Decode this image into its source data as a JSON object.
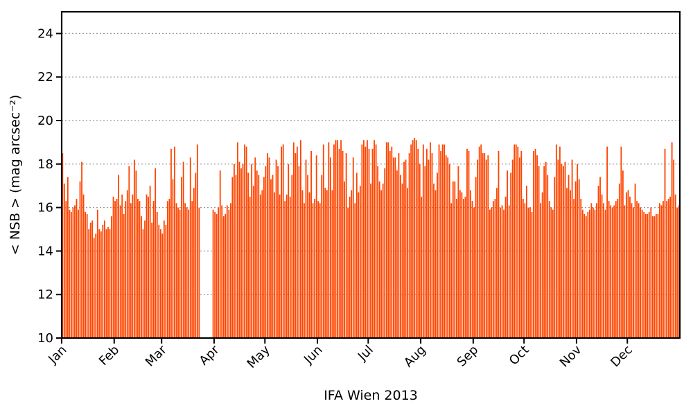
{
  "chart_data": {
    "type": "bar",
    "xlabel": "IFA Wien 2013",
    "ylabel": "< NSB >  (mag arcsec⁻²)",
    "ylim": [
      10,
      25
    ],
    "yticks": [
      10,
      12,
      14,
      16,
      18,
      20,
      22,
      24
    ],
    "grid": "horizontal dotted",
    "xlim_days": [
      1,
      365
    ],
    "month_labels": [
      "Jan",
      "Feb",
      "Mar",
      "Apr",
      "May",
      "Jun",
      "Jul",
      "Aug",
      "Sep",
      "Oct",
      "Nov",
      "Dec"
    ],
    "month_start_days": [
      1,
      32,
      60,
      91,
      121,
      152,
      182,
      213,
      244,
      274,
      305,
      335
    ],
    "bar_color": "#ff4500",
    "gap_days": [
      79,
      86
    ],
    "series": [
      {
        "values": [
          18.5,
          17.1,
          16.3,
          17.4,
          15.9,
          15.8,
          16.0,
          16.1,
          16.4,
          15.9,
          17.2,
          18.1,
          16.6,
          15.8,
          15.7,
          15.0,
          15.3,
          15.4,
          14.6,
          14.8,
          15.9,
          15.0,
          14.9,
          15.2,
          15.4,
          15.0,
          15.1,
          15.0,
          15.6,
          16.5,
          16.3,
          16.4,
          17.5,
          16.1,
          16.6,
          15.7,
          16.3,
          16.8,
          17.9,
          16.2,
          16.6,
          18.2,
          17.7,
          16.4,
          16.3,
          15.6,
          15.0,
          15.4,
          16.6,
          16.5,
          17.0,
          15.3,
          16.3,
          17.8,
          15.8,
          15.2,
          15.0,
          14.8,
          15.4,
          15.2,
          16.3,
          16.4,
          18.7,
          17.3,
          18.8,
          16.2,
          16.0,
          15.9,
          17.4,
          18.1,
          16.2,
          16.0,
          15.9,
          18.3,
          16.3,
          16.9,
          17.6,
          18.9,
          16.0,
          10,
          10,
          10,
          10,
          10,
          10,
          10,
          15.9,
          15.8,
          15.7,
          16.0,
          17.7,
          16.1,
          15.6,
          15.7,
          16.1,
          15.9,
          16.2,
          17.4,
          18.0,
          17.5,
          19.0,
          18.1,
          17.8,
          18.0,
          18.9,
          18.8,
          17.6,
          16.5,
          18.0,
          17.0,
          18.3,
          17.7,
          17.5,
          16.6,
          16.8,
          17.4,
          17.9,
          18.5,
          18.3,
          17.3,
          17.5,
          16.7,
          18.2,
          17.9,
          16.6,
          18.8,
          18.9,
          16.3,
          16.6,
          18.0,
          16.5,
          17.5,
          19.0,
          18.5,
          18.8,
          17.9,
          19.1,
          16.8,
          16.2,
          18.2,
          17.5,
          16.7,
          18.6,
          16.2,
          16.4,
          18.4,
          16.3,
          16.2,
          17.5,
          18.9,
          16.9,
          16.8,
          19.0,
          18.3,
          16.8,
          18.9,
          19.1,
          19.1,
          18.7,
          19.1,
          18.6,
          17.2,
          18.5,
          16.0,
          16.5,
          16.8,
          18.3,
          16.2,
          17.6,
          16.7,
          17.0,
          18.9,
          19.1,
          18.8,
          19.1,
          18.7,
          17.1,
          18.7,
          19.1,
          18.9,
          17.9,
          17.2,
          16.8,
          17.1,
          17.8,
          19.0,
          19.0,
          18.6,
          18.8,
          18.3,
          18.3,
          17.7,
          18.5,
          17.5,
          17.1,
          18.1,
          18.2,
          16.9,
          18.5,
          18.9,
          19.1,
          19.2,
          19.1,
          18.7,
          18.0,
          16.5,
          18.9,
          17.9,
          18.7,
          18.2,
          19.0,
          18.5,
          17.1,
          16.8,
          17.6,
          18.9,
          18.6,
          18.9,
          18.9,
          18.4,
          18.3,
          18.0,
          16.2,
          17.2,
          17.2,
          16.4,
          17.9,
          16.8,
          16.7,
          16.4,
          16.5,
          18.7,
          18.6,
          16.8,
          16.3,
          16.0,
          17.4,
          18.2,
          18.8,
          18.9,
          18.5,
          18.5,
          18.2,
          18.4,
          15.9,
          16.0,
          16.3,
          16.4,
          16.9,
          18.6,
          16.0,
          16.1,
          15.9,
          16.5,
          17.7,
          16.1,
          17.6,
          18.2,
          18.9,
          18.9,
          18.8,
          18.3,
          18.6,
          16.4,
          16.2,
          17.0,
          16.0,
          16.0,
          15.8,
          18.6,
          18.7,
          18.4,
          17.9,
          16.2,
          16.7,
          17.9,
          18.1,
          17.5,
          16.3,
          16.0,
          15.9,
          17.4,
          18.9,
          18.2,
          18.8,
          18.0,
          17.9,
          18.1,
          16.9,
          17.5,
          16.8,
          18.2,
          16.4,
          17.2,
          18.0,
          17.3,
          16.4,
          15.9,
          15.7,
          15.6,
          15.8,
          15.9,
          16.2,
          16.0,
          15.9,
          16.2,
          17.0,
          17.4,
          16.6,
          16.2,
          15.9,
          18.8,
          16.3,
          16.1,
          16.0,
          16.1,
          16.3,
          16.4,
          17.1,
          18.8,
          17.7,
          16.1,
          16.7,
          16.8,
          16.5,
          16.2,
          16.0,
          17.1,
          16.3,
          16.2,
          16.0,
          15.9,
          15.8,
          15.7,
          15.7,
          15.8,
          16.0,
          15.6,
          15.6,
          15.7,
          15.7,
          16.2,
          16.1,
          16.3,
          18.7,
          16.3,
          16.4,
          16.5,
          19.0,
          18.2,
          16.6,
          16.0,
          16.1
        ]
      }
    ]
  }
}
